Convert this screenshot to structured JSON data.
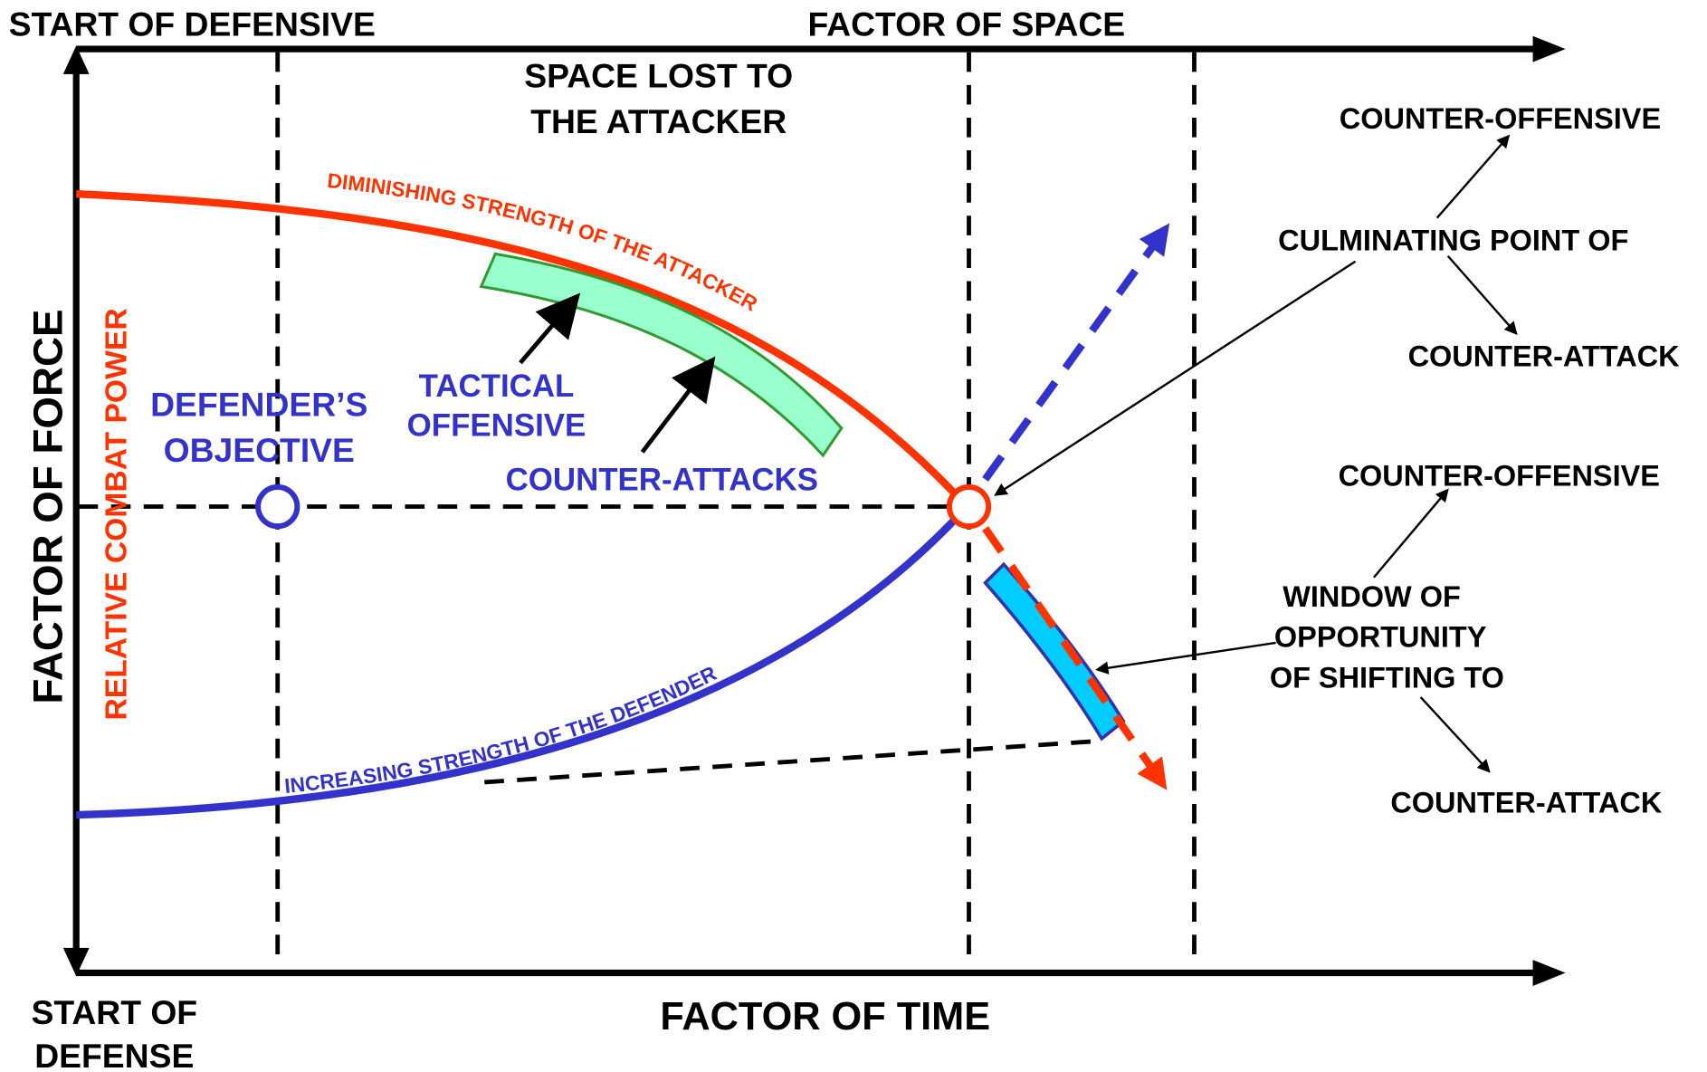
{
  "axes": {
    "top_left": "START OF DEFENSIVE",
    "top": "FACTOR OF SPACE",
    "bottom_left": [
      "START OF",
      "DEFENSE"
    ],
    "bottom": "FACTOR OF TIME",
    "left": "FACTOR OF FORCE",
    "left_inner": "RELATIVE COMBAT POWER"
  },
  "labels": {
    "space_lost": [
      "SPACE LOST TO",
      "THE ATTACKER"
    ],
    "attacker_curve": "DIMINISHING STRENGTH OF THE ATTACKER",
    "defender_curve": "INCREASING STRENGTH OF THE DEFENDER",
    "defender_objective": [
      "DEFENDER’S",
      "OBJECTIVE"
    ],
    "tactical_offensive": [
      "TACTICAL",
      "OFFENSIVE"
    ],
    "counter_attacks": "COUNTER-ATTACKS",
    "culminating": {
      "top": "COUNTER-OFFENSIVE",
      "middle": "CULMINATING POINT OF",
      "bottom": "COUNTER-ATTACK"
    },
    "window": {
      "top": "COUNTER-OFFENSIVE",
      "middle": [
        "WINDOW OF",
        "OPPORTUNITY",
        "OF SHIFTING TO"
      ],
      "bottom": "COUNTER-ATTACK"
    }
  }
}
